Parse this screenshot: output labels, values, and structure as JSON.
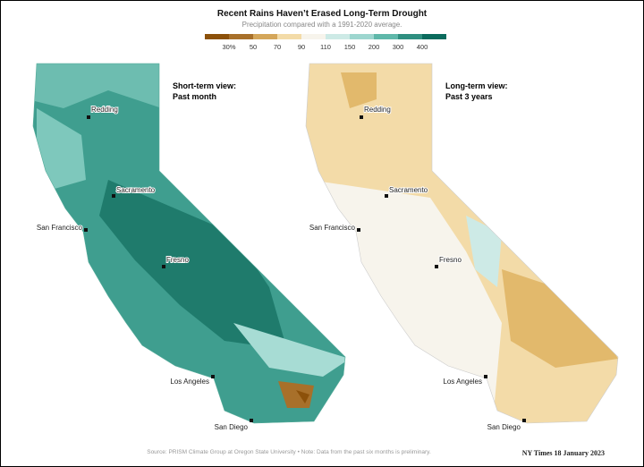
{
  "header": {
    "title": "Recent Rains Haven’t Erased Long-Term Drought",
    "subtitle": "Precipitation compared with a 1991-2020 average."
  },
  "legend": {
    "colors": [
      "#8c510a",
      "#a8702a",
      "#d4a65a",
      "#f3dba8",
      "#f7f4ec",
      "#cdeae6",
      "#9dd6cf",
      "#5fb8aa",
      "#2f8f80",
      "#0b6b5d"
    ],
    "labels": [
      "30%",
      "50",
      "70",
      "90",
      "110",
      "150",
      "200",
      "300",
      "400"
    ]
  },
  "panels": [
    {
      "title": "Short-term view:",
      "subtitle": "Past month"
    },
    {
      "title": "Long-term view:",
      "subtitle": "Past 3 years"
    }
  ],
  "cities": [
    "Redding",
    "Sacramento",
    "San Francisco",
    "Fresno",
    "Los Angeles",
    "San Diego"
  ],
  "source": "Source: PRISM Climate Group at Oregon State University  •  Note: Data from the past six months is preliminary.",
  "credit": "NY Times 18 January 2023"
}
